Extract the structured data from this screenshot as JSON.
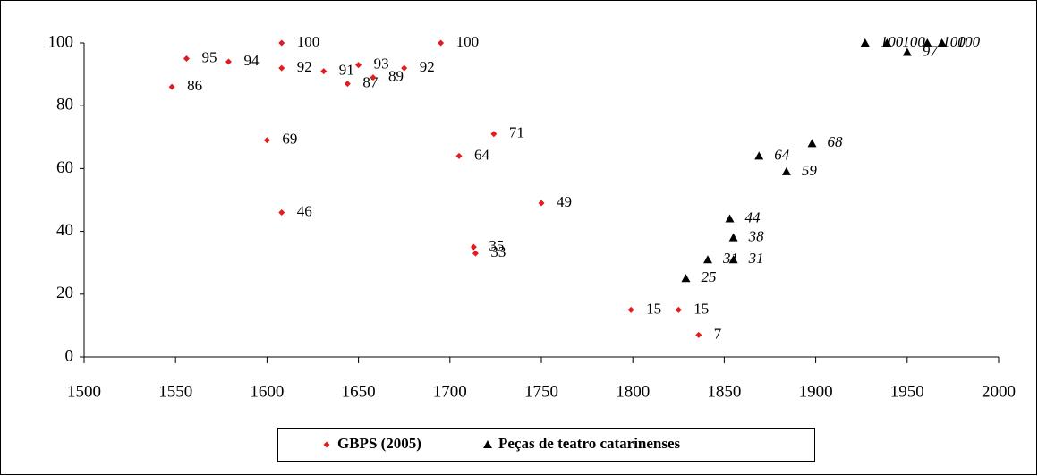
{
  "chart_data": {
    "type": "scatter",
    "xlim": [
      1500,
      2000
    ],
    "xticks": [
      1500,
      1550,
      1600,
      1650,
      1700,
      1750,
      1800,
      1850,
      1900,
      1950,
      2000
    ],
    "ylim": [
      0,
      100
    ],
    "yticks": [
      0,
      20,
      40,
      60,
      80,
      100
    ],
    "legend": "bottom",
    "series": [
      {
        "name": "GBPS (2005)",
        "color": "#e41a1c",
        "marker": "diamond",
        "label_style": "normal",
        "x": [
          1548,
          1556,
          1579,
          1608,
          1608,
          1631,
          1650,
          1644,
          1658,
          1675,
          1695,
          1600,
          1608,
          1724,
          1705,
          1750,
          1713,
          1714,
          1799,
          1825,
          1836
        ],
        "values": [
          86,
          95,
          94,
          100,
          92,
          91,
          93,
          87,
          89,
          92,
          100,
          69,
          46,
          71,
          64,
          49,
          35,
          33,
          15,
          15,
          7
        ]
      },
      {
        "name": "Peças de teatro catarinenses",
        "color": "#000000",
        "marker": "triangle",
        "label_style": "italic",
        "x": [
          1927,
          1939,
          1950,
          1961,
          1969,
          1898,
          1869,
          1884,
          1853,
          1855,
          1841,
          1855,
          1829
        ],
        "values": [
          100,
          100,
          97,
          100,
          100,
          68,
          64,
          59,
          44,
          38,
          31,
          31,
          25
        ]
      }
    ]
  }
}
